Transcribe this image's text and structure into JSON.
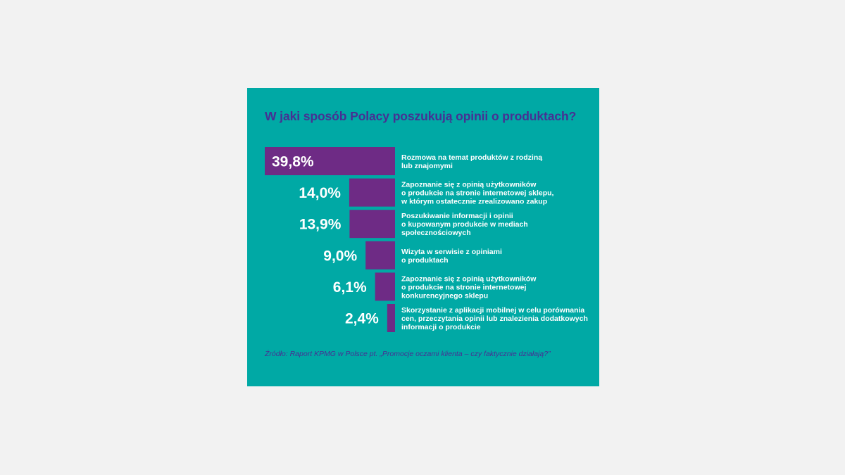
{
  "chart_data": {
    "type": "bar",
    "orientation": "horizontal",
    "title": "W jaki sposób Polacy poszukują opinii o produktach?",
    "value_labels": [
      "39,8%",
      "14,0%",
      "13,9%",
      "9,0%",
      "6,1%",
      "2,4%"
    ],
    "values": [
      39.8,
      14.0,
      13.9,
      9.0,
      6.1,
      2.4
    ],
    "categories": [
      [
        "Rozmowa na temat produktów z rodziną",
        "lub znajomymi"
      ],
      [
        "Zapoznanie się z opinią użytkowników",
        "o produkcie na stronie internetowej sklepu,",
        "w którym ostatecznie zrealizowano zakup"
      ],
      [
        "Poszukiwanie informacji i opinii",
        "o kupowanym produkcie w mediach",
        "społecznościowych"
      ],
      [
        "Wizyta w serwisie z opiniami",
        "o produktach"
      ],
      [
        "Zapoznanie się z opinią użytkowników",
        "o produkcie na stronie internetowej",
        "konkurencyjnego sklepu"
      ],
      [
        "Skorzystanie z aplikacji mobilnej w celu porównania",
        "cen, przeczytania opinii lub znalezienia dodatkowych",
        "informacji o produkcie"
      ]
    ],
    "source": "Źródło: Raport KPMG w Polsce pt. „Promocje oczami klienta – czy faktycznie działają?”",
    "colors": {
      "background": "#00a9a5",
      "bar": "#6e2b85",
      "title": "#473093",
      "text": "#ffffff",
      "page": "#f2f2f2"
    }
  }
}
